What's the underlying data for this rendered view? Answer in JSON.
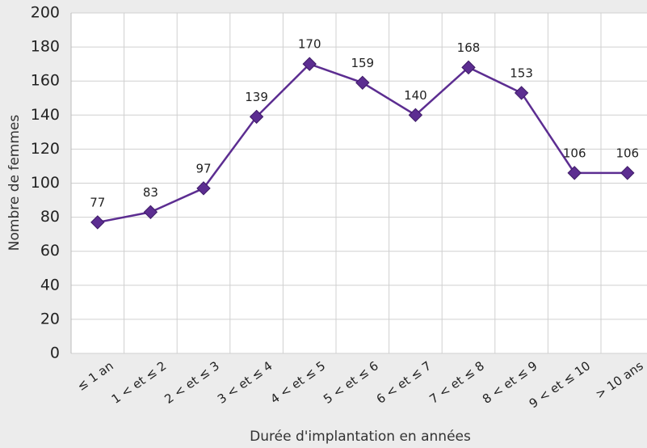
{
  "chart_data": {
    "type": "line",
    "y_label": "Nombre de femmes",
    "x_label": "Durée d'implantation en années",
    "categories": [
      "≤ 1 an",
      "1 < et ≤ 2",
      "2 < et ≤ 3",
      "3 < et ≤ 4",
      "4 < et ≤ 5",
      "5 < et ≤ 6",
      "6 < et ≤ 7",
      "7 < et ≤ 8",
      "8 < et ≤ 9",
      "9 < et ≤ 10",
      "> 10 ans"
    ],
    "values": [
      77,
      83,
      97,
      139,
      170,
      159,
      140,
      168,
      153,
      106,
      106
    ],
    "color": "#5c2d91",
    "ylim": [
      0,
      200
    ],
    "yticks": [
      0,
      20,
      40,
      60,
      80,
      100,
      120,
      140,
      160,
      180,
      200
    ],
    "grid": true
  }
}
